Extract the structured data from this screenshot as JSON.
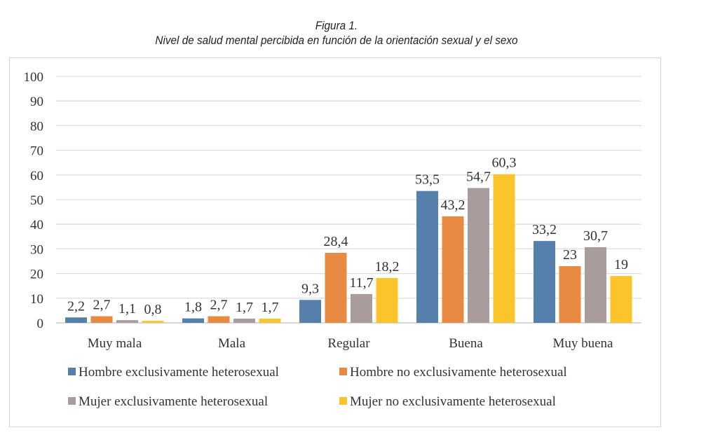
{
  "chart_data": {
    "type": "bar",
    "title": "Figura 1.",
    "subtitle": "Nivel de salud mental percibida en función de la orientación sexual y el sexo",
    "categories": [
      "Muy mala",
      "Mala",
      "Regular",
      "Buena",
      "Muy buena"
    ],
    "series": [
      {
        "name": "Hombre exclusivamente heterosexual",
        "color": "#5580ab",
        "values": [
          2.2,
          1.8,
          9.3,
          53.5,
          33.2
        ],
        "labels": [
          "2,2",
          "1,8",
          "9,3",
          "53,5",
          "33,2"
        ]
      },
      {
        "name": "Hombre no exclusivamente heterosexual",
        "color": "#e98a42",
        "values": [
          2.7,
          2.7,
          28.4,
          43.2,
          23
        ],
        "labels": [
          "2,7",
          "2,7",
          "28,4",
          "43,2",
          "23"
        ]
      },
      {
        "name": "Mujer exclusivamente heterosexual",
        "color": "#a99c9c",
        "values": [
          1.1,
          1.7,
          11.7,
          54.7,
          30.7
        ],
        "labels": [
          "1,1",
          "1,7",
          "11,7",
          "54,7",
          "30,7"
        ]
      },
      {
        "name": "Mujer no exclusivamente heterosexual",
        "color": "#fbc42a",
        "values": [
          0.8,
          1.7,
          18.2,
          60.3,
          19
        ],
        "labels": [
          "0,8",
          "1,7",
          "18,2",
          "60,3",
          "19"
        ]
      }
    ],
    "yticks": [
      "0",
      "10",
      "20",
      "30",
      "40",
      "50",
      "60",
      "70",
      "80",
      "90",
      "100"
    ],
    "ylim": [
      0,
      100
    ],
    "grid": true,
    "legend": "bottom"
  }
}
